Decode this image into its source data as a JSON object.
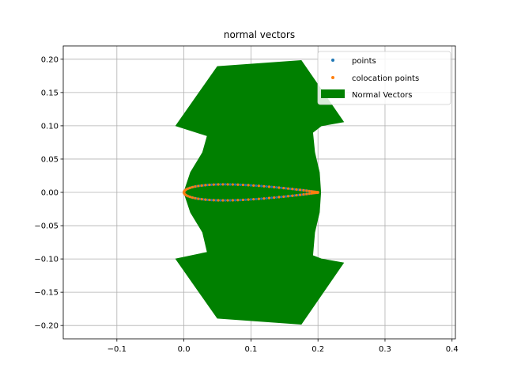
{
  "chart_data": {
    "type": "scatter",
    "title": "normal vectors",
    "xlabel": "",
    "ylabel": "",
    "xlim": [
      -0.18,
      0.405
    ],
    "ylim": [
      -0.22,
      0.22
    ],
    "grid": true,
    "x_ticks": [
      -0.1,
      0.0,
      0.1,
      0.2,
      0.3,
      0.4
    ],
    "x_tick_labels": [
      "−0.1",
      "0.0",
      "0.1",
      "0.2",
      "0.3",
      "0.4"
    ],
    "y_ticks": [
      -0.2,
      -0.15,
      -0.1,
      -0.05,
      0.0,
      0.05,
      0.1,
      0.15,
      0.2
    ],
    "y_tick_labels": [
      "−0.20",
      "−0.15",
      "−0.10",
      "−0.05",
      "0.00",
      "0.05",
      "0.10",
      "0.15",
      "0.20"
    ],
    "legend": {
      "position": "top-right",
      "entries": [
        {
          "label": "points",
          "kind": "marker",
          "color": "#1f77b4"
        },
        {
          "label": "colocation points",
          "kind": "marker",
          "color": "#ff7f0e"
        },
        {
          "label": "Normal Vectors",
          "kind": "patch",
          "color": "#008000"
        }
      ]
    },
    "series": [
      {
        "name": "Normal Vectors",
        "kind": "filled-region",
        "color": "#008000",
        "outline": [
          [
            -0.012,
            0.1
          ],
          [
            0.05,
            0.189
          ],
          [
            0.175,
            0.198
          ],
          [
            0.238,
            0.106
          ],
          [
            0.205,
            0.1
          ],
          [
            0.192,
            0.09
          ],
          [
            0.195,
            0.06
          ],
          [
            0.202,
            0.03
          ],
          [
            0.204,
            0.0
          ],
          [
            0.202,
            -0.03
          ],
          [
            0.195,
            -0.06
          ],
          [
            0.192,
            -0.095
          ],
          [
            0.205,
            -0.1
          ],
          [
            0.238,
            -0.106
          ],
          [
            0.175,
            -0.198
          ],
          [
            0.05,
            -0.189
          ],
          [
            -0.012,
            -0.1
          ],
          [
            0.035,
            -0.09
          ],
          [
            0.028,
            -0.06
          ],
          [
            0.01,
            -0.03
          ],
          [
            0.0,
            0.0
          ],
          [
            0.01,
            0.03
          ],
          [
            0.028,
            0.06
          ],
          [
            0.035,
            0.085
          ]
        ]
      },
      {
        "name": "points",
        "kind": "airfoil-upper-lower",
        "color": "#1f77b4",
        "chord": 0.2,
        "thickness": 0.12,
        "count": 41
      },
      {
        "name": "colocation points",
        "kind": "airfoil-midpoints",
        "color": "#ff7f0e",
        "chord": 0.2,
        "thickness": 0.12,
        "count": 40
      }
    ]
  }
}
